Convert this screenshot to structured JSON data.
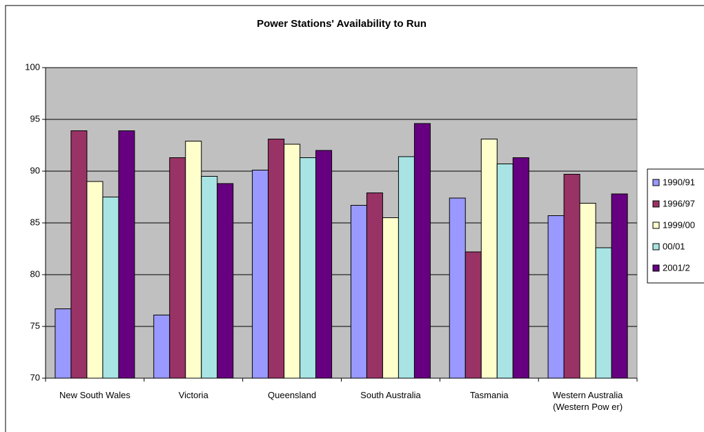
{
  "chart_data": {
    "type": "bar",
    "title": "Power Stations' Availability to Run",
    "categories": [
      "New  South Wales",
      "Victoria",
      "Queensland",
      "South Australia",
      "Tasmania",
      "Western Australia\n(Western Pow er)"
    ],
    "series": [
      {
        "name": "1990/91",
        "color": "#9999ff",
        "values": [
          76.7,
          76.1,
          90.1,
          86.7,
          87.4,
          85.7
        ]
      },
      {
        "name": "1996/97",
        "color": "#993366",
        "values": [
          93.9,
          91.3,
          93.1,
          87.9,
          82.2,
          89.7
        ]
      },
      {
        "name": "1999/00",
        "color": "#ffffcc",
        "values": [
          89.0,
          92.9,
          92.6,
          85.5,
          93.1,
          86.9
        ]
      },
      {
        "name": "00/01",
        "color": "#a8e4e4",
        "values": [
          87.5,
          89.5,
          91.3,
          91.4,
          90.7,
          82.6
        ]
      },
      {
        "name": "2001/2",
        "color": "#660080",
        "values": [
          93.9,
          88.8,
          92.0,
          94.6,
          91.3,
          87.8
        ]
      }
    ],
    "ylim": [
      70,
      100
    ],
    "yticks": [
      70,
      75,
      80,
      85,
      90,
      95,
      100
    ],
    "grid": true,
    "legend": "right"
  }
}
